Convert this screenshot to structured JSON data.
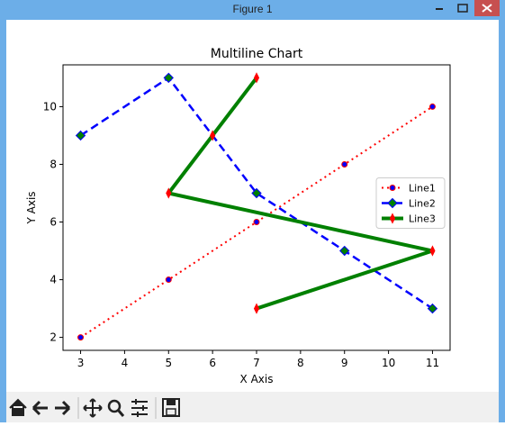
{
  "window": {
    "title": "Figure 1"
  },
  "chart_data": {
    "type": "line",
    "title": "Multiline Chart",
    "x_label": "X Axis",
    "y_label": "Y Axis",
    "xlim": [
      2.6,
      11.4
    ],
    "xticks": [
      3,
      4,
      5,
      6,
      7,
      8,
      9,
      10,
      11
    ],
    "ylim": [
      1.55,
      11.45
    ],
    "yticks": [
      2,
      4,
      6,
      8,
      10
    ],
    "grid": false,
    "legend": "right",
    "series": [
      {
        "name": "Line1",
        "color": "#ff0000",
        "linestyle": "dotted",
        "width": 2,
        "marker": "circle",
        "marker_color": "#0000ff",
        "x": [
          3,
          5,
          7,
          9,
          11
        ],
        "values": [
          2,
          4,
          6,
          8,
          10
        ]
      },
      {
        "name": "Line2",
        "color": "#0000ff",
        "linestyle": "dashed",
        "width": 2.5,
        "marker": "diamond",
        "marker_color": "#008000",
        "x": [
          3,
          5,
          7,
          9,
          11
        ],
        "values": [
          9,
          11,
          7,
          5,
          3
        ]
      },
      {
        "name": "Line3",
        "color": "#008000",
        "linestyle": "solid",
        "width": 4,
        "marker": "thin_diamond",
        "marker_color": "#ff0000",
        "x": [
          7,
          6,
          5,
          11,
          7
        ],
        "values": [
          11,
          9,
          7,
          5,
          3
        ]
      }
    ]
  }
}
